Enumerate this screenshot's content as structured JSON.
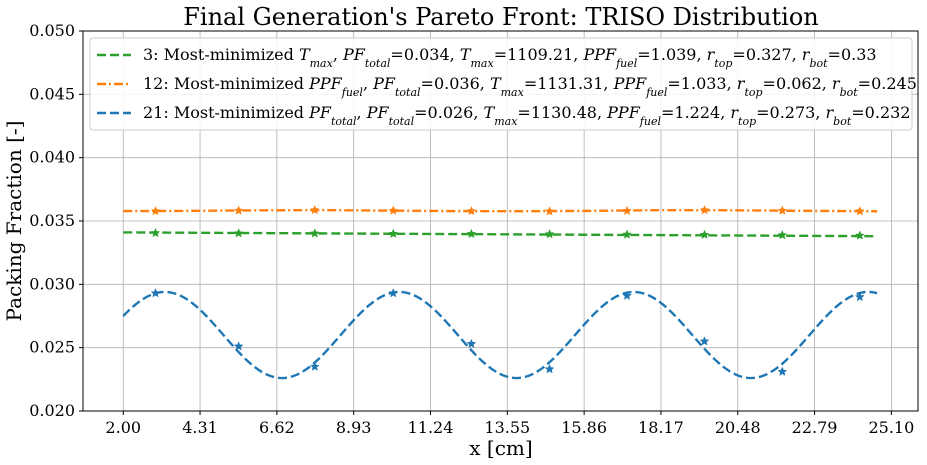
{
  "chart_data": {
    "type": "line",
    "title": "Final Generation's Pareto Front: TRISO Distribution",
    "xlabel": "x [cm]",
    "ylabel": "Packing Fraction [-]",
    "xlim": [
      0.79,
      25.9
    ],
    "ylim": [
      0.02,
      0.05
    ],
    "xticks": [
      "2.00",
      "4.31",
      "6.62",
      "8.93",
      "11.24",
      "13.55",
      "15.86",
      "18.17",
      "20.48",
      "22.79",
      "25.10"
    ],
    "yticks": [
      "0.020",
      "0.025",
      "0.030",
      "0.035",
      "0.040",
      "0.045",
      "0.050"
    ],
    "grid": true,
    "legend_position": "top-left",
    "series": [
      {
        "name": "3: Most-minimized T_max, PF_total=0.034, T_max=1109.21, PPF_fuel=1.039, r_top=0.327, r_bot=0.33",
        "color": "#2ca02c",
        "linestyle": "dashed",
        "x": [
          2.0,
          24.67
        ],
        "y": [
          0.0341,
          0.0338
        ],
        "markers_x": [
          2.97,
          5.47,
          7.76,
          10.12,
          12.47,
          14.82,
          17.15,
          19.48,
          21.82,
          24.15
        ],
        "markers_y": [
          0.03405,
          0.03403,
          0.03402,
          0.03399,
          0.03398,
          0.03396,
          0.03393,
          0.03391,
          0.03388,
          0.03385
        ]
      },
      {
        "name": "12: Most-minimized PPF_fuel, PF_total=0.036, T_max=1131.31, PPF_fuel=1.033, r_top=0.062, r_bot=0.245",
        "color": "#ff7f0e",
        "linestyle": "dashdot",
        "x": [
          2.0,
          4.0,
          6.0,
          8.0,
          10.0,
          12.0,
          14.0,
          16.0,
          18.0,
          20.0,
          22.0,
          24.67
        ],
        "y": [
          0.03578,
          0.0358,
          0.03584,
          0.03586,
          0.03582,
          0.03578,
          0.03577,
          0.0358,
          0.03585,
          0.03585,
          0.03581,
          0.03577
        ],
        "markers_x": [
          2.97,
          5.47,
          7.76,
          10.12,
          12.47,
          14.82,
          17.15,
          19.48,
          21.82,
          24.15
        ],
        "markers_y": [
          0.03578,
          0.03582,
          0.03586,
          0.03582,
          0.03578,
          0.03576,
          0.0358,
          0.03586,
          0.03582,
          0.03577
        ]
      },
      {
        "name": "21: Most-minimized PF_total, PF_total=0.026, T_max=1130.48, PPF_fuel=1.224, r_top=0.273, r_bot=0.232",
        "color": "#1f77b4",
        "linestyle": "dashed",
        "x_start": 2.0,
        "x_end": 24.67,
        "curve": {
          "mean": 0.026,
          "amplitude": 0.0034,
          "period": 7.05,
          "peak_x": 3.25
        },
        "markers_x": [
          2.97,
          5.47,
          7.76,
          10.12,
          12.47,
          14.82,
          17.15,
          19.48,
          21.82,
          24.15
        ],
        "markers_y": [
          0.0293,
          0.0251,
          0.0235,
          0.0293,
          0.0253,
          0.0233,
          0.0291,
          0.0255,
          0.0231,
          0.029
        ]
      }
    ],
    "legend": [
      {
        "prefix": "3: Most-minimized ",
        "sym": "T",
        "sub": "max",
        "text": [
          ", ",
          "PF",
          "total",
          "=0.034, ",
          "T",
          "max",
          "=1109.21, ",
          "PPF",
          "fuel",
          "=1.039, ",
          "r",
          "top",
          "=0.327, ",
          "r",
          "bot",
          "=0.33"
        ]
      },
      {
        "prefix": "12: Most-minimized ",
        "sym": "PPF",
        "sub": "fuel",
        "text": [
          ", ",
          "PF",
          "total",
          "=0.036, ",
          "T",
          "max",
          "=1131.31, ",
          "PPF",
          "fuel",
          "=1.033, ",
          "r",
          "top",
          "=0.062, ",
          "r",
          "bot",
          "=0.245"
        ]
      },
      {
        "prefix": "21: Most-minimized ",
        "sym": "PF",
        "sub": "total",
        "text": [
          ", ",
          "PF",
          "total",
          "=0.026, ",
          "T",
          "max",
          "=1130.48, ",
          "PPF",
          "fuel",
          "=1.224, ",
          "r",
          "top",
          "=0.273, ",
          "r",
          "bot",
          "=0.232"
        ]
      }
    ]
  }
}
